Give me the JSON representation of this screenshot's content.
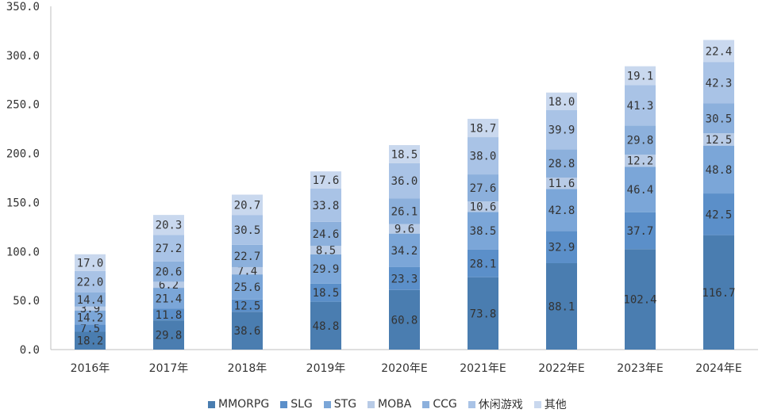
{
  "chart_data": {
    "type": "bar",
    "stacked": true,
    "categories": [
      "2016年",
      "2017年",
      "2018年",
      "2019年",
      "2020年E",
      "2021年E",
      "2022年E",
      "2023年E",
      "2024年E"
    ],
    "ylim": [
      0,
      350
    ],
    "yticks": [
      "0.0",
      "50.0",
      "100.0",
      "150.0",
      "200.0",
      "250.0",
      "300.0",
      "350.0"
    ],
    "grid": false,
    "legend_position": "bottom",
    "series": [
      {
        "name": "MMORPG",
        "color": "#4a7db0",
        "label_color": "#333333",
        "values": [
          18.2,
          29.8,
          38.6,
          48.8,
          60.8,
          73.8,
          88.1,
          102.4,
          116.7
        ]
      },
      {
        "name": "SLG",
        "color": "#5b8fc9",
        "label_color": "#333333",
        "values": [
          7.5,
          11.8,
          12.5,
          18.5,
          23.3,
          28.1,
          32.9,
          37.7,
          42.5
        ]
      },
      {
        "name": "STG",
        "color": "#7ba6d8",
        "label_color": "#333333",
        "values": [
          14.2,
          21.4,
          25.6,
          29.9,
          34.2,
          38.5,
          42.8,
          46.4,
          48.8
        ]
      },
      {
        "name": "MOBA",
        "color": "#b8cbe6",
        "label_color": "#333333",
        "values": [
          3.9,
          6.2,
          7.4,
          8.5,
          9.6,
          10.6,
          11.6,
          12.2,
          12.5
        ]
      },
      {
        "name": "CCG",
        "color": "#8cb0dc",
        "label_color": "#333333",
        "values": [
          14.4,
          20.6,
          22.7,
          24.6,
          26.1,
          27.6,
          28.8,
          29.8,
          30.5
        ]
      },
      {
        "name": "休闲游戏",
        "color": "#a9c3e6",
        "label_color": "#333333",
        "values": [
          22.0,
          27.2,
          30.5,
          33.8,
          36.0,
          38.0,
          39.9,
          41.3,
          42.3
        ]
      },
      {
        "name": "其他",
        "color": "#c9d8ee",
        "label_color": "#333333",
        "values": [
          17.0,
          20.3,
          20.7,
          17.6,
          18.5,
          18.7,
          18.0,
          19.1,
          22.4
        ]
      }
    ],
    "value_labels": [
      [
        "18.2",
        "7.5",
        "14.2",
        "3.9",
        "14.4",
        "22.0",
        "17.0"
      ],
      [
        "29.8",
        "11.8",
        "21.4",
        "6.2",
        "20.6",
        "27.2",
        "20.3"
      ],
      [
        "38.6",
        "12.5",
        "25.6",
        "7.4",
        "22.7",
        "30.5",
        "20.7"
      ],
      [
        "48.8",
        "18.5",
        "29.9",
        "8.5",
        "24.6",
        "33.8",
        "17.6"
      ],
      [
        "60.8",
        "23.3",
        "34.2",
        "9.6",
        "26.1",
        "36.0",
        "18.5"
      ],
      [
        "73.8",
        "28.1",
        "38.5",
        "10.6",
        "27.6",
        "38.0",
        "18.7"
      ],
      [
        "88.1",
        "32.9",
        "42.8",
        "11.6",
        "28.8",
        "39.9",
        "18.0"
      ],
      [
        "102.4",
        "37.7",
        "46.4",
        "12.2",
        "29.8",
        "41.3",
        "19.1"
      ],
      [
        "116.7",
        "42.5",
        "48.8",
        "12.5",
        "30.5",
        "42.3",
        "22.4"
      ]
    ]
  }
}
